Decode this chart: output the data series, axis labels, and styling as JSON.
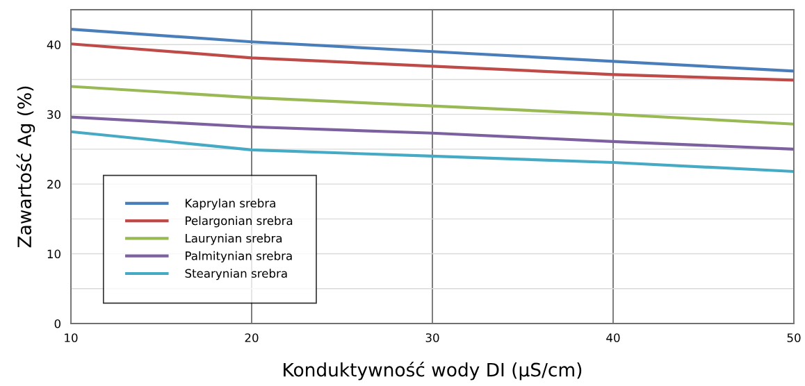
{
  "chart_data": {
    "type": "line",
    "xlabel": "Konduktywność wody DI (µS/cm)",
    "ylabel": "Zawartość Ag (%)",
    "x": [
      10,
      20,
      30,
      40,
      50
    ],
    "series": [
      {
        "name": "Kaprylan srebra",
        "color": "#4a7ebb",
        "values": [
          42.2,
          40.4,
          39.0,
          37.6,
          36.2
        ]
      },
      {
        "name": "Pelargonian srebra",
        "color": "#be4b48",
        "values": [
          40.1,
          38.1,
          36.9,
          35.7,
          34.9
        ]
      },
      {
        "name": "Laurynian srebra",
        "color": "#98b954",
        "values": [
          34.0,
          32.4,
          31.2,
          30.0,
          28.6
        ]
      },
      {
        "name": "Palmitynian srebra",
        "color": "#7d60a0",
        "values": [
          29.6,
          28.2,
          27.3,
          26.1,
          25.0
        ]
      },
      {
        "name": "Stearynian srebra",
        "color": "#46aac5",
        "values": [
          27.5,
          24.9,
          24.0,
          23.1,
          21.8
        ]
      }
    ],
    "xlim": [
      10,
      50
    ],
    "xticks": [
      10,
      20,
      30,
      40,
      50
    ],
    "ylim": [
      0,
      45
    ],
    "yticks": [
      0,
      {
        "value": 5,
        "label": null
      },
      10,
      {
        "value": 15,
        "label": null
      },
      20,
      {
        "value": 25,
        "label": null
      },
      30,
      {
        "value": 35,
        "label": null
      },
      40
    ],
    "grid": true,
    "legend": "bottom left",
    "marker": "none",
    "line_style": "solid"
  }
}
